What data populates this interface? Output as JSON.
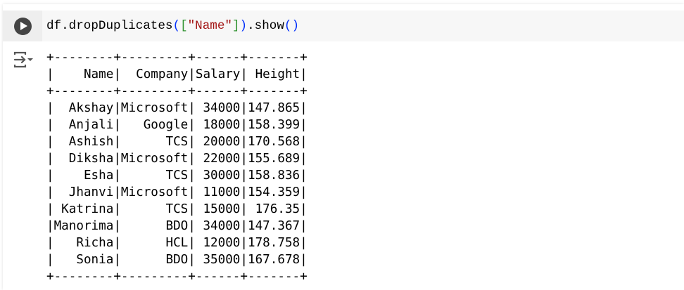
{
  "cell": {
    "code": {
      "prefix": "df.dropDuplicates",
      "open_paren": "(",
      "open_bracket": "[",
      "string": "\"Name\"",
      "close_bracket": "]",
      "close_paren": ")",
      "method": ".show",
      "call": "()"
    },
    "run_icon": "play-circle-icon",
    "output_icon": "output-toggle-icon"
  },
  "output": {
    "columns": [
      "Name",
      "Company",
      "Salary",
      "Height"
    ],
    "rows": [
      [
        "Akshay",
        "Microsoft",
        "34000",
        "147.865"
      ],
      [
        "Anjali",
        "Google",
        "18000",
        "158.399"
      ],
      [
        "Ashish",
        "TCS",
        "20000",
        "170.568"
      ],
      [
        "Diksha",
        "Microsoft",
        "22000",
        "155.689"
      ],
      [
        "Esha",
        "TCS",
        "30000",
        "158.836"
      ],
      [
        "Jhanvi",
        "Microsoft",
        "11000",
        "154.359"
      ],
      [
        "Katrina",
        "TCS",
        "15000",
        "176.35"
      ],
      [
        "Manorima",
        "BDO",
        "34000",
        "147.367"
      ],
      [
        "Richa",
        "HCL",
        "12000",
        "178.758"
      ],
      [
        "Sonia",
        "BDO",
        "35000",
        "167.678"
      ]
    ]
  }
}
